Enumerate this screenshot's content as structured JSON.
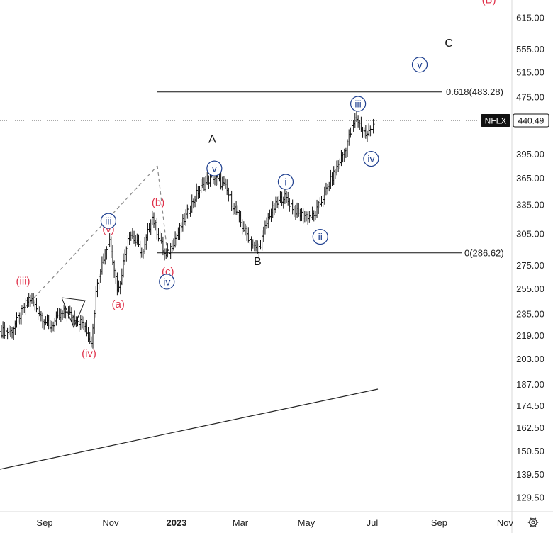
{
  "chart_data": {
    "type": "ohlc",
    "symbol": "NFLX",
    "last_price": "440.49",
    "y_axis_scale": "log",
    "y_ticks": [
      "615.00",
      "555.00",
      "515.00",
      "475.00",
      "395.00",
      "365.00",
      "335.00",
      "305.00",
      "275.00",
      "255.00",
      "235.00",
      "219.00",
      "203.00",
      "187.00",
      "174.50",
      "162.50",
      "150.50",
      "139.50",
      "129.50"
    ],
    "x_ticks": [
      {
        "label": "Sep",
        "bold": false
      },
      {
        "label": "Nov",
        "bold": false
      },
      {
        "label": "2023",
        "bold": true
      },
      {
        "label": "Mar",
        "bold": false
      },
      {
        "label": "May",
        "bold": false
      },
      {
        "label": "Jul",
        "bold": false
      },
      {
        "label": "Sep",
        "bold": false
      },
      {
        "label": "Nov",
        "bold": false
      }
    ],
    "fib_levels": [
      {
        "label": "0.618(483.28)",
        "value": 483.28
      },
      {
        "label": "0(286.62)",
        "value": 286.62
      }
    ],
    "price_path": [
      {
        "date": "2022-08-01",
        "price": 222
      },
      {
        "date": "2022-08-18",
        "price": 248
      },
      {
        "date": "2022-09-05",
        "price": 225
      },
      {
        "date": "2022-09-20",
        "price": 237
      },
      {
        "date": "2022-10-06",
        "price": 228
      },
      {
        "date": "2022-10-14",
        "price": 214
      },
      {
        "date": "2022-10-20",
        "price": 265
      },
      {
        "date": "2022-10-31",
        "price": 300
      },
      {
        "date": "2022-11-08",
        "price": 252
      },
      {
        "date": "2022-11-18",
        "price": 308
      },
      {
        "date": "2022-12-01",
        "price": 285
      },
      {
        "date": "2022-12-09",
        "price": 324
      },
      {
        "date": "2022-12-22",
        "price": 282
      },
      {
        "date": "2023-01-05",
        "price": 312
      },
      {
        "date": "2023-01-20",
        "price": 348
      },
      {
        "date": "2023-02-03",
        "price": 368
      },
      {
        "date": "2023-02-15",
        "price": 355
      },
      {
        "date": "2023-03-03",
        "price": 312
      },
      {
        "date": "2023-03-17",
        "price": 287
      },
      {
        "date": "2023-03-28",
        "price": 325
      },
      {
        "date": "2023-04-10",
        "price": 345
      },
      {
        "date": "2023-04-24",
        "price": 325
      },
      {
        "date": "2023-05-08",
        "price": 322
      },
      {
        "date": "2023-05-22",
        "price": 358
      },
      {
        "date": "2023-06-05",
        "price": 398
      },
      {
        "date": "2023-06-16",
        "price": 445
      },
      {
        "date": "2023-06-26",
        "price": 418
      },
      {
        "date": "2023-07-03",
        "price": 440
      }
    ],
    "wave_labels": [
      {
        "text": "(iii)",
        "style": "red",
        "date": "2022-08-12",
        "price": 262
      },
      {
        "text": "(iv)",
        "style": "red",
        "date": "2022-10-12",
        "price": 207
      },
      {
        "text": "(v)",
        "style": "red",
        "date": "2022-10-30",
        "price": 310
      },
      {
        "text": "iii",
        "style": "circle",
        "date": "2022-10-30",
        "price": 318
      },
      {
        "text": "(a)",
        "style": "red",
        "date": "2022-11-08",
        "price": 243
      },
      {
        "text": "(b)",
        "style": "red",
        "date": "2022-12-15",
        "price": 338
      },
      {
        "text": "(c)",
        "style": "red",
        "date": "2022-12-24",
        "price": 270
      },
      {
        "text": "iv",
        "style": "circle",
        "date": "2022-12-23",
        "price": 261
      },
      {
        "text": "v",
        "style": "circle",
        "date": "2023-02-05",
        "price": 377
      },
      {
        "text": "A",
        "style": "black",
        "date": "2023-02-03",
        "price": 415
      },
      {
        "text": "B",
        "style": "black",
        "date": "2023-03-17",
        "price": 279
      },
      {
        "text": "i",
        "style": "circle",
        "date": "2023-04-12",
        "price": 361
      },
      {
        "text": "ii",
        "style": "circle",
        "date": "2023-05-14",
        "price": 302
      },
      {
        "text": "iii",
        "style": "circle",
        "date": "2023-06-18",
        "price": 465
      },
      {
        "text": "iv",
        "style": "circle",
        "date": "2023-06-30",
        "price": 389
      },
      {
        "text": "v",
        "style": "circle",
        "date": "2023-08-14",
        "price": 528
      },
      {
        "text": "C",
        "style": "black",
        "date": "2023-09-10",
        "price": 567
      },
      {
        "text": "(B)",
        "style": "red",
        "date": "2023-10-17",
        "price": 653
      }
    ],
    "icons": [
      "settings-gear-icon"
    ]
  }
}
